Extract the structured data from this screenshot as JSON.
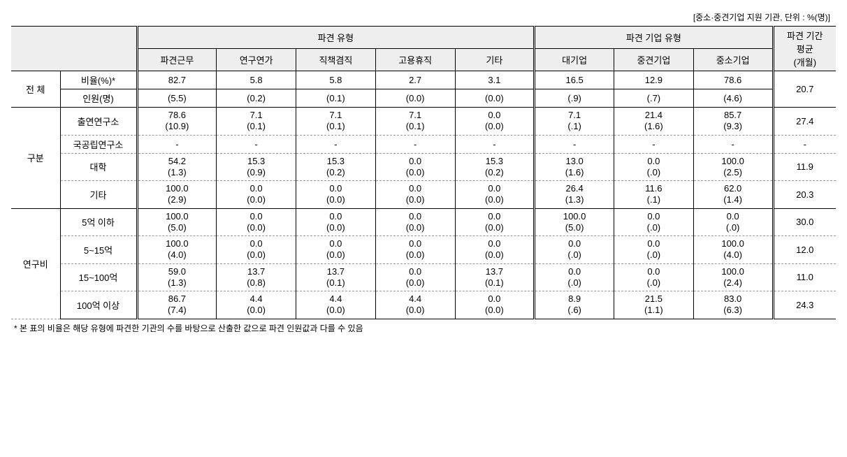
{
  "unit_note": "[중소·중견기업 지원 기관, 단위 : %(명)]",
  "header": {
    "group1": "파견 유형",
    "group2": "파견 기업 유형",
    "avg": "파견 기간\n평균\n(개월)",
    "cols_type": [
      "파견근무",
      "연구연가",
      "직책겸직",
      "고용휴직",
      "기타"
    ],
    "cols_firm": [
      "대기업",
      "중견기업",
      "중소기업"
    ]
  },
  "rowgroups": [
    {
      "label": "전 체",
      "subrows": [
        {
          "label": "비율(%)*",
          "single_line": true,
          "type": [
            "82.7",
            "5.8",
            "5.8",
            "2.7",
            "3.1"
          ],
          "firm": [
            "16.5",
            "12.9",
            "78.6"
          ],
          "avg": "20.7",
          "avg_span_start": true
        },
        {
          "label": "인원(명)",
          "single_line": true,
          "paren": true,
          "type": [
            "5.5",
            "0.2",
            "0.1",
            "0.0",
            "0.0"
          ],
          "firm": [
            ".9",
            ".7",
            "4.6"
          ]
        }
      ],
      "after_solid": true
    },
    {
      "label": "구분",
      "subrows": [
        {
          "label": "출연연구소",
          "type_p": [
            "78.6",
            "7.1",
            "7.1",
            "7.1",
            "0.0"
          ],
          "type_n": [
            "10.9",
            "0.1",
            "0.1",
            "0.1",
            "0.0"
          ],
          "firm_p": [
            "7.1",
            "21.4",
            "85.7"
          ],
          "firm_n": [
            ".1",
            "1.6",
            "9.3"
          ],
          "avg": "27.4"
        },
        {
          "label": "국공립연구소",
          "dash": true,
          "type_p": [
            "-",
            "-",
            "-",
            "-",
            "-"
          ],
          "type_n": null,
          "firm_p": [
            "-",
            "-",
            "-"
          ],
          "firm_n": null,
          "avg": "-"
        },
        {
          "label": "대학",
          "type_p": [
            "54.2",
            "15.3",
            "15.3",
            "0.0",
            "15.3"
          ],
          "type_n": [
            "1.3",
            "0.9",
            "0.2",
            "0.0",
            "0.2"
          ],
          "firm_p": [
            "13.0",
            "0.0",
            "100.0"
          ],
          "firm_n": [
            "1.6",
            ".0",
            "2.5"
          ],
          "avg": "11.9"
        },
        {
          "label": "기타",
          "type_p": [
            "100.0",
            "0.0",
            "0.0",
            "0.0",
            "0.0"
          ],
          "type_n": [
            "2.9",
            "0.0",
            "0.0",
            "0.0",
            "0.0"
          ],
          "firm_p": [
            "26.4",
            "11.6",
            "62.0"
          ],
          "firm_n": [
            "1.3",
            ".1",
            "1.4"
          ],
          "avg": "20.3"
        }
      ],
      "after_solid": true
    },
    {
      "label": "연구비",
      "subrows": [
        {
          "label": "5억 이하",
          "type_p": [
            "100.0",
            "0.0",
            "0.0",
            "0.0",
            "0.0"
          ],
          "type_n": [
            "5.0",
            "0.0",
            "0.0",
            "0.0",
            "0.0"
          ],
          "firm_p": [
            "100.0",
            "0.0",
            "0.0"
          ],
          "firm_n": [
            "5.0",
            ".0",
            ".0"
          ],
          "avg": "30.0"
        },
        {
          "label": "5~15억",
          "type_p": [
            "100.0",
            "0.0",
            "0.0",
            "0.0",
            "0.0"
          ],
          "type_n": [
            "4.0",
            "0.0",
            "0.0",
            "0.0",
            "0.0"
          ],
          "firm_p": [
            "0.0",
            "0.0",
            "100.0"
          ],
          "firm_n": [
            ".0",
            ".0",
            "4.0"
          ],
          "avg": "12.0"
        },
        {
          "label": "15~100억",
          "type_p": [
            "59.0",
            "13.7",
            "13.7",
            "0.0",
            "13.7"
          ],
          "type_n": [
            "1.3",
            "0.8",
            "0.1",
            "0.0",
            "0.1"
          ],
          "firm_p": [
            "0.0",
            "0.0",
            "100.0"
          ],
          "firm_n": [
            ".0",
            ".0",
            "2.4"
          ],
          "avg": "11.0"
        },
        {
          "label": "100억 이상",
          "type_p": [
            "86.7",
            "4.4",
            "4.4",
            "4.4",
            "0.0"
          ],
          "type_n": [
            "7.4",
            "0.0",
            "0.0",
            "0.0",
            "0.0"
          ],
          "firm_p": [
            "8.9",
            "21.5",
            "83.0"
          ],
          "firm_n": [
            ".6",
            "1.1",
            "6.3"
          ],
          "avg": "24.3"
        }
      ],
      "after_solid": false
    }
  ],
  "footnote": "* 본 표의 비율은 해당 유형에 파견한 기관의 수를 바탕으로 산출한 값으로 파견 인원값과 다를 수 있음",
  "style": {
    "bg": "#ffffff",
    "header_bg": "#eeeeee",
    "text": "#000000",
    "dash_color": "#999999",
    "font_size_body": 13,
    "font_size_small": 12
  }
}
